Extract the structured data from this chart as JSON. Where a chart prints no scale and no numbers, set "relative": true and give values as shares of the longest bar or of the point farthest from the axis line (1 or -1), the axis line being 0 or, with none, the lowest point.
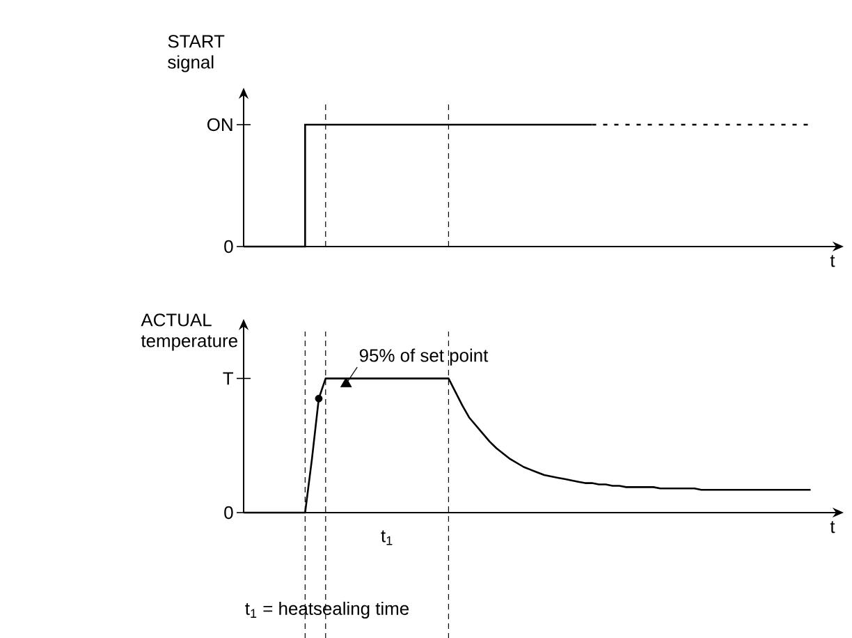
{
  "chart_data": [
    {
      "type": "step",
      "ylabel": "START signal",
      "xlabel": "t",
      "relative": true,
      "grid": "x",
      "annotations": [
        "0",
        "ON"
      ],
      "categories": [
        null,
        null,
        null,
        null,
        null,
        null,
        null,
        null,
        null,
        null,
        null,
        null,
        null,
        null,
        null,
        null,
        null,
        null,
        null,
        null,
        null,
        null,
        null,
        null,
        null,
        null,
        null,
        null,
        null,
        null,
        null,
        null,
        null,
        null,
        null,
        null,
        null,
        null,
        null,
        null,
        null,
        null,
        null,
        null,
        null,
        null,
        null,
        null,
        null,
        null,
        null,
        null,
        null,
        null,
        null,
        null,
        null,
        null,
        null,
        null,
        null,
        null,
        null,
        null,
        null,
        null,
        null,
        null,
        null,
        null,
        null,
        null,
        null,
        null,
        null,
        null,
        null,
        null,
        null,
        null,
        null,
        null,
        null,
        null,
        null,
        null,
        null
      ],
      "series": [
        {
          "color": "#000000",
          "values": [
            0,
            0,
            0,
            0,
            0,
            0,
            0,
            0,
            0,
            1,
            1,
            1,
            1,
            1,
            1,
            1,
            1,
            1,
            1,
            1,
            1,
            1,
            1,
            1,
            1,
            1,
            1,
            1,
            1,
            1,
            1,
            1,
            1,
            1,
            1,
            1,
            1,
            1,
            1,
            1,
            1,
            1,
            1,
            1,
            1,
            1,
            1,
            1,
            1,
            1,
            1,
            1,
            null,
            null,
            null,
            null,
            null,
            null,
            null,
            null,
            null,
            null,
            null,
            null,
            null,
            null,
            null,
            null,
            null,
            null,
            null,
            null,
            null,
            null,
            null,
            null,
            null,
            null,
            null,
            null,
            null,
            null,
            null,
            null,
            null,
            null,
            null
          ]
        },
        {
          "type": "line",
          "color": "#000000",
          "line_style": "dotted",
          "values": [
            null,
            null,
            null,
            null,
            null,
            null,
            null,
            null,
            null,
            null,
            null,
            null,
            null,
            null,
            null,
            null,
            null,
            null,
            null,
            null,
            null,
            null,
            null,
            null,
            null,
            null,
            null,
            null,
            null,
            null,
            null,
            null,
            null,
            null,
            null,
            null,
            null,
            null,
            null,
            null,
            null,
            null,
            null,
            null,
            null,
            null,
            null,
            null,
            null,
            null,
            null,
            1,
            1,
            1,
            1,
            1,
            1,
            1,
            1,
            1,
            1,
            1,
            1,
            1,
            1,
            1,
            1,
            1,
            1,
            1,
            1,
            1,
            1,
            1,
            1,
            1,
            1,
            1,
            1,
            1,
            1,
            1,
            1,
            1,
            null,
            null,
            null
          ]
        }
      ]
    },
    {
      "type": "line",
      "ylabel": "ACTUAL temperature",
      "xlabel": "t",
      "relative": true,
      "categories": [
        null,
        null,
        null,
        null,
        null,
        null,
        null,
        null,
        null,
        null,
        null,
        null,
        null,
        null,
        null,
        null,
        null,
        null,
        null,
        null,
        null,
        null,
        null,
        null,
        null,
        null,
        null,
        null,
        null,
        null,
        null,
        null,
        null,
        null,
        null,
        null,
        null,
        null,
        null,
        null,
        null,
        null,
        null,
        null,
        null,
        null,
        null,
        null,
        null,
        null,
        null,
        null,
        null,
        null,
        null,
        null,
        null,
        null,
        null,
        null,
        null,
        null,
        null,
        null,
        null,
        null,
        null,
        null,
        null,
        null,
        null,
        null,
        null,
        null,
        null,
        null,
        null,
        null,
        null,
        null,
        null,
        null,
        null,
        null,
        null,
        null,
        null
      ],
      "series": [
        {
          "color": "#000000",
          "values": [
            0,
            0,
            0,
            0,
            0,
            0,
            0,
            0,
            0,
            0,
            0.4,
            0.85,
            1,
            1,
            1,
            1,
            1,
            1,
            1,
            1,
            1,
            1,
            1,
            1,
            1,
            1,
            1,
            1,
            1,
            1,
            1,
            0.9,
            0.8,
            0.71,
            0.65,
            0.59,
            0.53,
            0.48,
            0.44,
            0.4,
            0.37,
            0.34,
            0.32,
            0.3,
            0.28,
            0.27,
            0.26,
            0.25,
            0.24,
            0.23,
            0.22,
            0.22,
            0.21,
            0.21,
            0.2,
            0.2,
            0.19,
            0.19,
            0.19,
            0.19,
            0.19,
            0.18,
            0.18,
            0.18,
            0.18,
            0.18,
            0.18,
            0.17,
            0.17,
            0.17,
            0.17,
            0.17,
            0.17,
            0.17,
            0.17,
            0.17,
            0.17,
            0.17,
            0.17,
            0.17,
            0.17,
            0.17,
            0.17,
            0.17,
            null,
            null,
            null
          ]
        },
        {
          "type": "scatter",
          "color": "#000000",
          "marker": "circle",
          "values": [
            null,
            null,
            null,
            null,
            null,
            null,
            null,
            null,
            null,
            null,
            null,
            0.85,
            null,
            null,
            null,
            null,
            null,
            null,
            null,
            null,
            null,
            null,
            null,
            null,
            null,
            null,
            null,
            null,
            null,
            null,
            null,
            null,
            null,
            null,
            null,
            null,
            null,
            null,
            null,
            null,
            null,
            null,
            null,
            null,
            null,
            null,
            null,
            null,
            null,
            null,
            null,
            null,
            null,
            null,
            null,
            null,
            null,
            null,
            null,
            null,
            null,
            null,
            null,
            null,
            null,
            null,
            null,
            null,
            null,
            null,
            null,
            null,
            null,
            null,
            null,
            null,
            null,
            null,
            null,
            null,
            null,
            null,
            null,
            null,
            null,
            null,
            null
          ]
        },
        {
          "type": "scatter",
          "color": "#000000",
          "marker": "triangle",
          "values": [
            null,
            null,
            null,
            null,
            null,
            null,
            null,
            null,
            null,
            null,
            null,
            null,
            null,
            null,
            null,
            0.96,
            null,
            null,
            null,
            null,
            null,
            null,
            null,
            null,
            null,
            null,
            null,
            null,
            null,
            null,
            null,
            null,
            null,
            null,
            null,
            null,
            null,
            null,
            null,
            null,
            null,
            null,
            null,
            null,
            null,
            null,
            null,
            null,
            null,
            null,
            null,
            null,
            null,
            null,
            null,
            null,
            null,
            null,
            null,
            null,
            null,
            null,
            null,
            null,
            null,
            null,
            null,
            null,
            null,
            null,
            null,
            null,
            null,
            null,
            null,
            null,
            null,
            null,
            null,
            null,
            null,
            null,
            null,
            null,
            null,
            null,
            null
          ]
        }
      ],
      "grid": "x",
      "annotations": [
        "0",
        "T",
        "95% of set point",
        "t$_{1}$",
        "t$_{1}$ = heatsealing time"
      ]
    }
  ]
}
